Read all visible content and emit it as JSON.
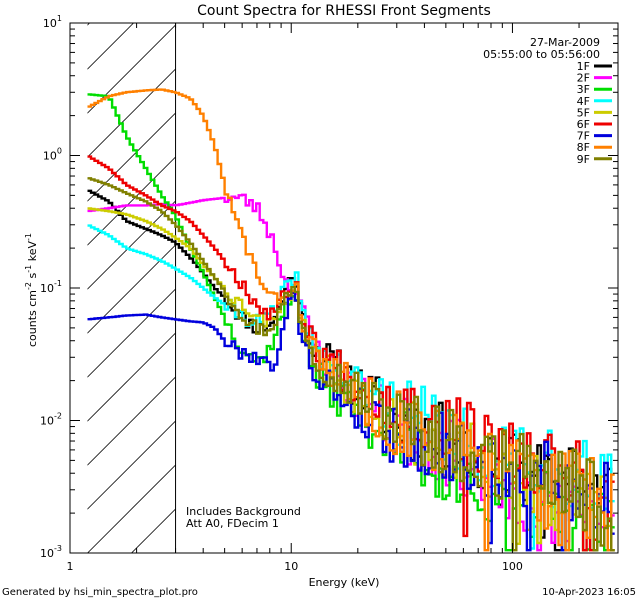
{
  "chart_data": {
    "type": "line",
    "title": "Count Spectra for RHESSI Front Segments",
    "xlabel": "Energy (keV)",
    "ylabel_base": "counts cm",
    "ylabel_exp1": "-2",
    "ylabel_mid": " s",
    "ylabel_exp2": "-1",
    "ylabel_mid2": " keV",
    "ylabel_exp3": "-1",
    "xscale": "log",
    "yscale": "log",
    "xlim": [
      1,
      300
    ],
    "ylim": [
      0.001,
      10
    ],
    "x_ticks": [
      {
        "value": 1,
        "label": "1"
      },
      {
        "value": 10,
        "label": "10"
      },
      {
        "value": 100,
        "label": "100"
      }
    ],
    "y_ticks": [
      {
        "value": 0.001,
        "base": "10",
        "exp": "-3"
      },
      {
        "value": 0.01,
        "base": "10",
        "exp": "-2"
      },
      {
        "value": 0.1,
        "base": "10",
        "exp": "-1"
      },
      {
        "value": 1,
        "base": "10",
        "exp": "0"
      },
      {
        "value": 10,
        "base": "10",
        "exp": "1"
      }
    ],
    "hatched_region": {
      "x_start": 1.2,
      "x_end": 3
    },
    "date": "27-Mar-2009",
    "time_range": "05:55:00 to 05:56:00",
    "annotations": [
      "Includes Background",
      "Att A0, FDecim 1"
    ],
    "series": [
      {
        "name": "1F",
        "color": "#000000",
        "seed": 11,
        "points": [
          [
            1.2,
            0.55
          ],
          [
            1.5,
            0.45
          ],
          [
            1.8,
            0.32
          ],
          [
            2.2,
            0.28
          ],
          [
            2.6,
            0.25
          ],
          [
            3,
            0.22
          ],
          [
            3.5,
            0.17
          ],
          [
            4,
            0.13
          ],
          [
            4.5,
            0.1
          ],
          [
            5,
            0.085
          ],
          [
            5.5,
            0.07
          ],
          [
            6,
            0.06
          ],
          [
            6.5,
            0.055
          ],
          [
            7,
            0.05
          ],
          [
            7.5,
            0.05
          ],
          [
            8,
            0.055
          ],
          [
            8.5,
            0.06
          ],
          [
            9,
            0.075
          ],
          [
            9.5,
            0.1
          ],
          [
            10,
            0.12
          ],
          [
            10.5,
            0.125
          ],
          [
            11,
            0.07
          ],
          [
            12,
            0.045
          ],
          [
            13,
            0.035
          ],
          [
            15,
            0.028
          ],
          [
            20,
            0.018
          ],
          [
            30,
            0.01
          ],
          [
            50,
            0.007
          ],
          [
            80,
            0.005
          ],
          [
            120,
            0.004
          ],
          [
            200,
            0.0035
          ],
          [
            290,
            0.003
          ]
        ]
      },
      {
        "name": "2F",
        "color": "#ff00ff",
        "seed": 23,
        "points": [
          [
            1.2,
            0.38
          ],
          [
            1.5,
            0.4
          ],
          [
            1.8,
            0.42
          ],
          [
            2.2,
            0.42
          ],
          [
            2.6,
            0.43
          ],
          [
            3,
            0.42
          ],
          [
            3.5,
            0.44
          ],
          [
            4,
            0.46
          ],
          [
            4.5,
            0.47
          ],
          [
            5,
            0.48
          ],
          [
            5.5,
            0.48
          ],
          [
            6,
            0.47
          ],
          [
            6.5,
            0.44
          ],
          [
            7,
            0.4
          ],
          [
            7.5,
            0.33
          ],
          [
            8,
            0.26
          ],
          [
            8.5,
            0.2
          ],
          [
            9,
            0.14
          ],
          [
            9.5,
            0.11
          ],
          [
            10,
            0.1
          ],
          [
            10.5,
            0.095
          ],
          [
            11,
            0.08
          ],
          [
            12,
            0.05
          ],
          [
            13,
            0.035
          ],
          [
            15,
            0.025
          ],
          [
            20,
            0.015
          ],
          [
            30,
            0.009
          ],
          [
            50,
            0.006
          ],
          [
            80,
            0.004
          ],
          [
            120,
            0.0025
          ],
          [
            200,
            0.002
          ],
          [
            290,
            0.0015
          ]
        ]
      },
      {
        "name": "3F",
        "color": "#00dd00",
        "seed": 37,
        "points": [
          [
            1.2,
            2.9
          ],
          [
            1.5,
            2.8
          ],
          [
            1.8,
            1.4
          ],
          [
            2.2,
            0.8
          ],
          [
            2.6,
            0.5
          ],
          [
            3,
            0.35
          ],
          [
            3.5,
            0.2
          ],
          [
            4,
            0.13
          ],
          [
            4.5,
            0.085
          ],
          [
            5,
            0.06
          ],
          [
            5.5,
            0.045
          ],
          [
            6,
            0.035
          ],
          [
            6.5,
            0.032
          ],
          [
            7,
            0.028
          ],
          [
            7.5,
            0.03
          ],
          [
            8,
            0.035
          ],
          [
            8.5,
            0.045
          ],
          [
            9,
            0.06
          ],
          [
            9.5,
            0.07
          ],
          [
            10,
            0.08
          ],
          [
            10.5,
            0.1
          ],
          [
            11,
            0.055
          ],
          [
            12,
            0.03
          ],
          [
            13,
            0.022
          ],
          [
            15,
            0.017
          ],
          [
            20,
            0.012
          ],
          [
            30,
            0.007
          ],
          [
            50,
            0.004
          ],
          [
            80,
            0.003
          ],
          [
            120,
            0.0025
          ],
          [
            200,
            0.002
          ],
          [
            290,
            0.0015
          ]
        ]
      },
      {
        "name": "4F",
        "color": "#00ffff",
        "seed": 41,
        "points": [
          [
            1.2,
            0.3
          ],
          [
            1.5,
            0.25
          ],
          [
            1.8,
            0.2
          ],
          [
            2.2,
            0.18
          ],
          [
            2.6,
            0.16
          ],
          [
            3,
            0.14
          ],
          [
            3.5,
            0.12
          ],
          [
            4,
            0.1
          ],
          [
            4.5,
            0.085
          ],
          [
            5,
            0.075
          ],
          [
            5.5,
            0.068
          ],
          [
            6,
            0.062
          ],
          [
            6.5,
            0.058
          ],
          [
            7,
            0.055
          ],
          [
            7.5,
            0.058
          ],
          [
            8,
            0.062
          ],
          [
            8.5,
            0.07
          ],
          [
            9,
            0.085
          ],
          [
            9.5,
            0.1
          ],
          [
            10,
            0.115
          ],
          [
            10.5,
            0.13
          ],
          [
            11,
            0.075
          ],
          [
            12,
            0.045
          ],
          [
            13,
            0.035
          ],
          [
            15,
            0.028
          ],
          [
            20,
            0.018
          ],
          [
            30,
            0.012
          ],
          [
            50,
            0.008
          ],
          [
            80,
            0.006
          ],
          [
            120,
            0.005
          ],
          [
            200,
            0.004
          ],
          [
            290,
            0.003
          ]
        ]
      },
      {
        "name": "5F",
        "color": "#cccc00",
        "seed": 53,
        "points": [
          [
            1.2,
            0.4
          ],
          [
            1.5,
            0.38
          ],
          [
            1.8,
            0.36
          ],
          [
            2.2,
            0.32
          ],
          [
            2.6,
            0.28
          ],
          [
            3,
            0.24
          ],
          [
            3.5,
            0.2
          ],
          [
            4,
            0.15
          ],
          [
            4.5,
            0.12
          ],
          [
            5,
            0.1
          ],
          [
            5.5,
            0.085
          ],
          [
            6,
            0.075
          ],
          [
            6.5,
            0.068
          ],
          [
            7,
            0.06
          ],
          [
            7.5,
            0.058
          ],
          [
            8,
            0.06
          ],
          [
            8.5,
            0.065
          ],
          [
            9,
            0.075
          ],
          [
            9.5,
            0.085
          ],
          [
            10,
            0.09
          ],
          [
            10.5,
            0.095
          ],
          [
            11,
            0.06
          ],
          [
            12,
            0.04
          ],
          [
            13,
            0.03
          ],
          [
            15,
            0.024
          ],
          [
            20,
            0.016
          ],
          [
            30,
            0.01
          ],
          [
            50,
            0.006
          ],
          [
            80,
            0.0045
          ],
          [
            120,
            0.0035
          ],
          [
            200,
            0.0028
          ],
          [
            290,
            0.0022
          ]
        ]
      },
      {
        "name": "6F",
        "color": "#ee0000",
        "seed": 67,
        "points": [
          [
            1.2,
            1.0
          ],
          [
            1.5,
            0.8
          ],
          [
            1.8,
            0.6
          ],
          [
            2.2,
            0.5
          ],
          [
            2.6,
            0.42
          ],
          [
            3,
            0.38
          ],
          [
            3.5,
            0.32
          ],
          [
            4,
            0.25
          ],
          [
            4.5,
            0.2
          ],
          [
            5,
            0.16
          ],
          [
            5.5,
            0.13
          ],
          [
            6,
            0.11
          ],
          [
            6.5,
            0.09
          ],
          [
            7,
            0.075
          ],
          [
            7.5,
            0.068
          ],
          [
            8,
            0.065
          ],
          [
            8.5,
            0.07
          ],
          [
            9,
            0.08
          ],
          [
            9.5,
            0.09
          ],
          [
            10,
            0.1
          ],
          [
            10.5,
            0.11
          ],
          [
            11,
            0.065
          ],
          [
            12,
            0.045
          ],
          [
            13,
            0.035
          ],
          [
            15,
            0.028
          ],
          [
            20,
            0.02
          ],
          [
            30,
            0.013
          ],
          [
            50,
            0.009
          ],
          [
            80,
            0.006
          ],
          [
            120,
            0.005
          ],
          [
            200,
            0.004
          ],
          [
            290,
            0.003
          ]
        ]
      },
      {
        "name": "7F",
        "color": "#0000dd",
        "seed": 79,
        "points": [
          [
            1.2,
            0.058
          ],
          [
            1.5,
            0.06
          ],
          [
            1.8,
            0.062
          ],
          [
            2.2,
            0.063
          ],
          [
            2.6,
            0.06
          ],
          [
            3,
            0.058
          ],
          [
            3.5,
            0.056
          ],
          [
            4,
            0.055
          ],
          [
            4.5,
            0.05
          ],
          [
            5,
            0.04
          ],
          [
            5.5,
            0.035
          ],
          [
            6,
            0.033
          ],
          [
            6.5,
            0.032
          ],
          [
            7,
            0.03
          ],
          [
            7.5,
            0.028
          ],
          [
            8,
            0.025
          ],
          [
            8.5,
            0.03
          ],
          [
            9,
            0.04
          ],
          [
            9.5,
            0.06
          ],
          [
            10,
            0.08
          ],
          [
            10.5,
            0.1
          ],
          [
            11,
            0.05
          ],
          [
            12,
            0.03
          ],
          [
            13,
            0.022
          ],
          [
            15,
            0.018
          ],
          [
            20,
            0.012
          ],
          [
            30,
            0.008
          ],
          [
            50,
            0.006
          ],
          [
            80,
            0.0045
          ],
          [
            120,
            0.004
          ],
          [
            200,
            0.0032
          ],
          [
            290,
            0.0025
          ]
        ]
      },
      {
        "name": "8F",
        "color": "#ff8000",
        "seed": 83,
        "points": [
          [
            1.2,
            2.3
          ],
          [
            1.5,
            2.8
          ],
          [
            1.8,
            3.0
          ],
          [
            2.2,
            3.1
          ],
          [
            2.6,
            3.15
          ],
          [
            3,
            3.0
          ],
          [
            3.5,
            2.7
          ],
          [
            4,
            2.0
          ],
          [
            4.5,
            1.2
          ],
          [
            5,
            0.6
          ],
          [
            5.5,
            0.35
          ],
          [
            6,
            0.25
          ],
          [
            6.5,
            0.18
          ],
          [
            7,
            0.13
          ],
          [
            7.5,
            0.1
          ],
          [
            8,
            0.085
          ],
          [
            8.5,
            0.08
          ],
          [
            9,
            0.085
          ],
          [
            9.5,
            0.09
          ],
          [
            10,
            0.1
          ],
          [
            10.5,
            0.105
          ],
          [
            11,
            0.065
          ],
          [
            12,
            0.04
          ],
          [
            13,
            0.03
          ],
          [
            15,
            0.024
          ],
          [
            20,
            0.016
          ],
          [
            30,
            0.01
          ],
          [
            50,
            0.007
          ],
          [
            80,
            0.005
          ],
          [
            120,
            0.004
          ],
          [
            200,
            0.0032
          ],
          [
            290,
            0.0025
          ]
        ]
      },
      {
        "name": "9F",
        "color": "#808000",
        "seed": 97,
        "points": [
          [
            1.2,
            0.68
          ],
          [
            1.5,
            0.6
          ],
          [
            1.8,
            0.52
          ],
          [
            2.2,
            0.45
          ],
          [
            2.6,
            0.38
          ],
          [
            3,
            0.3
          ],
          [
            3.5,
            0.22
          ],
          [
            4,
            0.16
          ],
          [
            4.5,
            0.12
          ],
          [
            5,
            0.095
          ],
          [
            5.5,
            0.078
          ],
          [
            6,
            0.065
          ],
          [
            6.5,
            0.055
          ],
          [
            7,
            0.05
          ],
          [
            7.5,
            0.048
          ],
          [
            8,
            0.05
          ],
          [
            8.5,
            0.058
          ],
          [
            9,
            0.07
          ],
          [
            9.5,
            0.085
          ],
          [
            10,
            0.095
          ],
          [
            10.5,
            0.1
          ],
          [
            11,
            0.06
          ],
          [
            12,
            0.04
          ],
          [
            13,
            0.03
          ],
          [
            15,
            0.024
          ],
          [
            20,
            0.016
          ],
          [
            30,
            0.01
          ],
          [
            50,
            0.007
          ],
          [
            80,
            0.005
          ],
          [
            120,
            0.004
          ],
          [
            200,
            0.0032
          ],
          [
            290,
            0.0025
          ]
        ]
      }
    ]
  },
  "footer": {
    "left": "Generated by hsi_min_spectra_plot.pro",
    "right": "10-Apr-2023 16:05"
  }
}
